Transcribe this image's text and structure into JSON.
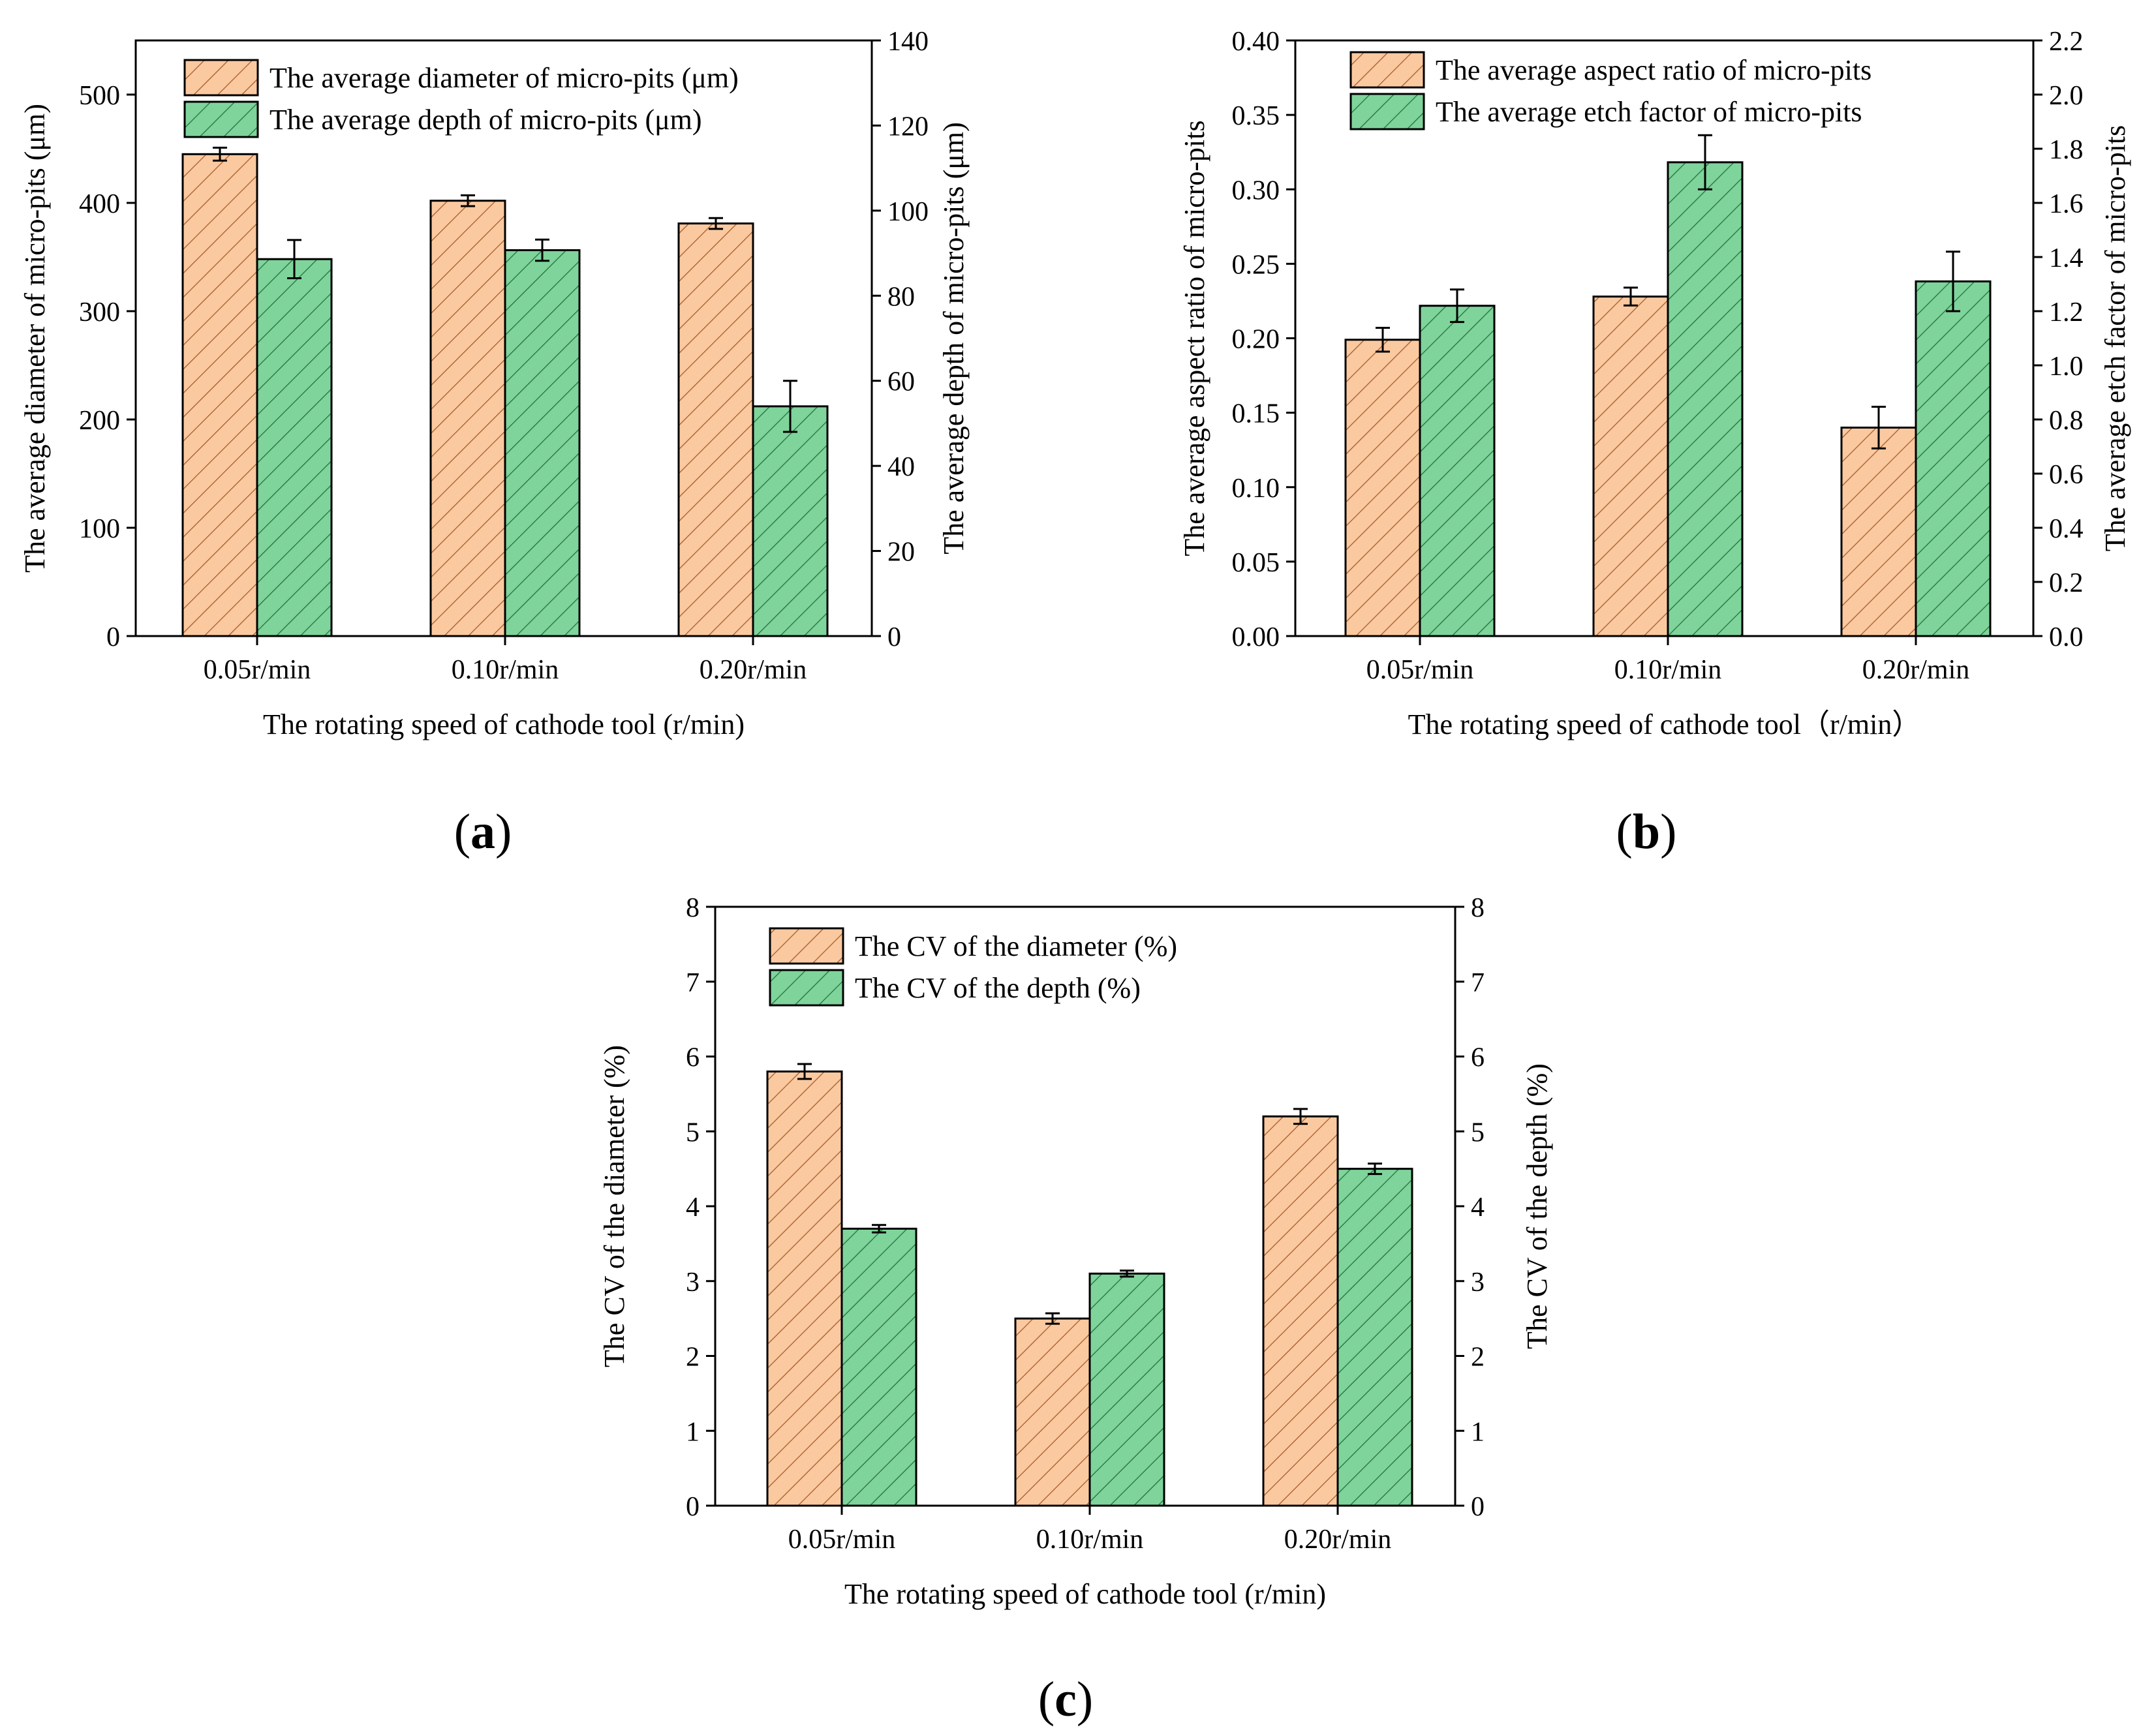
{
  "colors": {
    "orange_fill": "#fbc9a0",
    "orange_hatch": "#b06a3a",
    "green_fill": "#7fd49b",
    "green_hatch": "#2f7d48",
    "axis": "#000000"
  },
  "panels": [
    {
      "open": "(",
      "letter": "a",
      "close": ")"
    },
    {
      "open": "(",
      "letter": "b",
      "close": ")"
    },
    {
      "open": "(",
      "letter": "c",
      "close": ")"
    }
  ],
  "chart_data": [
    {
      "type": "bar",
      "panel": "a",
      "categories": [
        "0.05r/min",
        "0.10r/min",
        "0.20r/min"
      ],
      "xlabel": "The rotating speed of cathode tool (r/min)",
      "ylabel_left": "The average diameter of micro-pits (μm)",
      "ylabel_right": "The average depth of micro-pits (μm)",
      "ylim_left": [
        0,
        550
      ],
      "yticks_left": [
        0,
        100,
        200,
        300,
        400,
        500
      ],
      "yticks_left_labels": [
        "0",
        "100",
        "200",
        "300",
        "400",
        "500"
      ],
      "ylim_right": [
        0,
        140
      ],
      "yticks_right": [
        0,
        20,
        40,
        60,
        80,
        100,
        120,
        140
      ],
      "yticks_right_labels": [
        "0",
        "20",
        "40",
        "60",
        "80",
        "100",
        "120",
        "140"
      ],
      "legend_position": "top-left",
      "series": [
        {
          "name": "The average diameter of micro-pits (μm)",
          "axis": "left",
          "color": "orange",
          "values": [
            445,
            402,
            381
          ],
          "errors": [
            6,
            5,
            5
          ]
        },
        {
          "name": "The average depth of micro-pits (μm)",
          "axis": "right",
          "color": "green",
          "values": [
            88.6,
            90.7,
            54
          ],
          "errors": [
            4.5,
            2.5,
            6
          ]
        }
      ]
    },
    {
      "type": "bar",
      "panel": "b",
      "categories": [
        "0.05r/min",
        "0.10r/min",
        "0.20r/min"
      ],
      "xlabel": "The rotating speed of cathode tool（r/min）",
      "ylabel_left": "The average aspect ratio of micro-pits",
      "ylabel_right": "The average etch factor of micro-pits",
      "ylim_left": [
        0,
        0.4
      ],
      "yticks_left": [
        0,
        0.05,
        0.1,
        0.15,
        0.2,
        0.25,
        0.3,
        0.35,
        0.4
      ],
      "yticks_left_labels": [
        "0.00",
        "0.05",
        "0.10",
        "0.15",
        "0.20",
        "0.25",
        "0.30",
        "0.35",
        "0.40"
      ],
      "ylim_right": [
        0,
        2.2
      ],
      "yticks_right": [
        0,
        0.2,
        0.4,
        0.6,
        0.8,
        1.0,
        1.2,
        1.4,
        1.6,
        1.8,
        2.0,
        2.2
      ],
      "yticks_right_labels": [
        "0.0",
        "0.2",
        "0.4",
        "0.6",
        "0.8",
        "1.0",
        "1.2",
        "1.4",
        "1.6",
        "1.8",
        "2.0",
        "2.2"
      ],
      "legend_position": "top-left",
      "series": [
        {
          "name": "The average aspect ratio of micro-pits",
          "axis": "left",
          "color": "orange",
          "values": [
            0.199,
            0.228,
            0.14
          ],
          "errors": [
            0.008,
            0.006,
            0.014
          ]
        },
        {
          "name": "The average etch factor of micro-pits",
          "axis": "right",
          "color": "green",
          "values": [
            1.22,
            1.75,
            1.31
          ],
          "errors": [
            0.06,
            0.1,
            0.11
          ]
        }
      ]
    },
    {
      "type": "bar",
      "panel": "c",
      "categories": [
        "0.05r/min",
        "0.10r/min",
        "0.20r/min"
      ],
      "xlabel": "The rotating speed of cathode tool (r/min)",
      "ylabel_left": "The CV of the diameter (%)",
      "ylabel_right": "The CV of the depth (%)",
      "ylim_left": [
        0,
        8
      ],
      "yticks_left": [
        0,
        1,
        2,
        3,
        4,
        5,
        6,
        7,
        8
      ],
      "yticks_left_labels": [
        "0",
        "1",
        "2",
        "3",
        "4",
        "5",
        "6",
        "7",
        "8"
      ],
      "ylim_right": [
        0,
        8
      ],
      "yticks_right": [
        0,
        1,
        2,
        3,
        4,
        5,
        6,
        7,
        8
      ],
      "yticks_right_labels": [
        "0",
        "1",
        "2",
        "3",
        "4",
        "5",
        "6",
        "7",
        "8"
      ],
      "legend_position": "top-left",
      "series": [
        {
          "name": "The CV of the diameter (%)",
          "axis": "left",
          "color": "orange",
          "values": [
            5.8,
            2.5,
            5.2
          ],
          "errors": [
            0.1,
            0.07,
            0.1
          ]
        },
        {
          "name": "The CV of the depth (%)",
          "axis": "right",
          "color": "green",
          "values": [
            3.7,
            3.1,
            4.5
          ],
          "errors": [
            0.05,
            0.04,
            0.07
          ]
        }
      ]
    }
  ]
}
